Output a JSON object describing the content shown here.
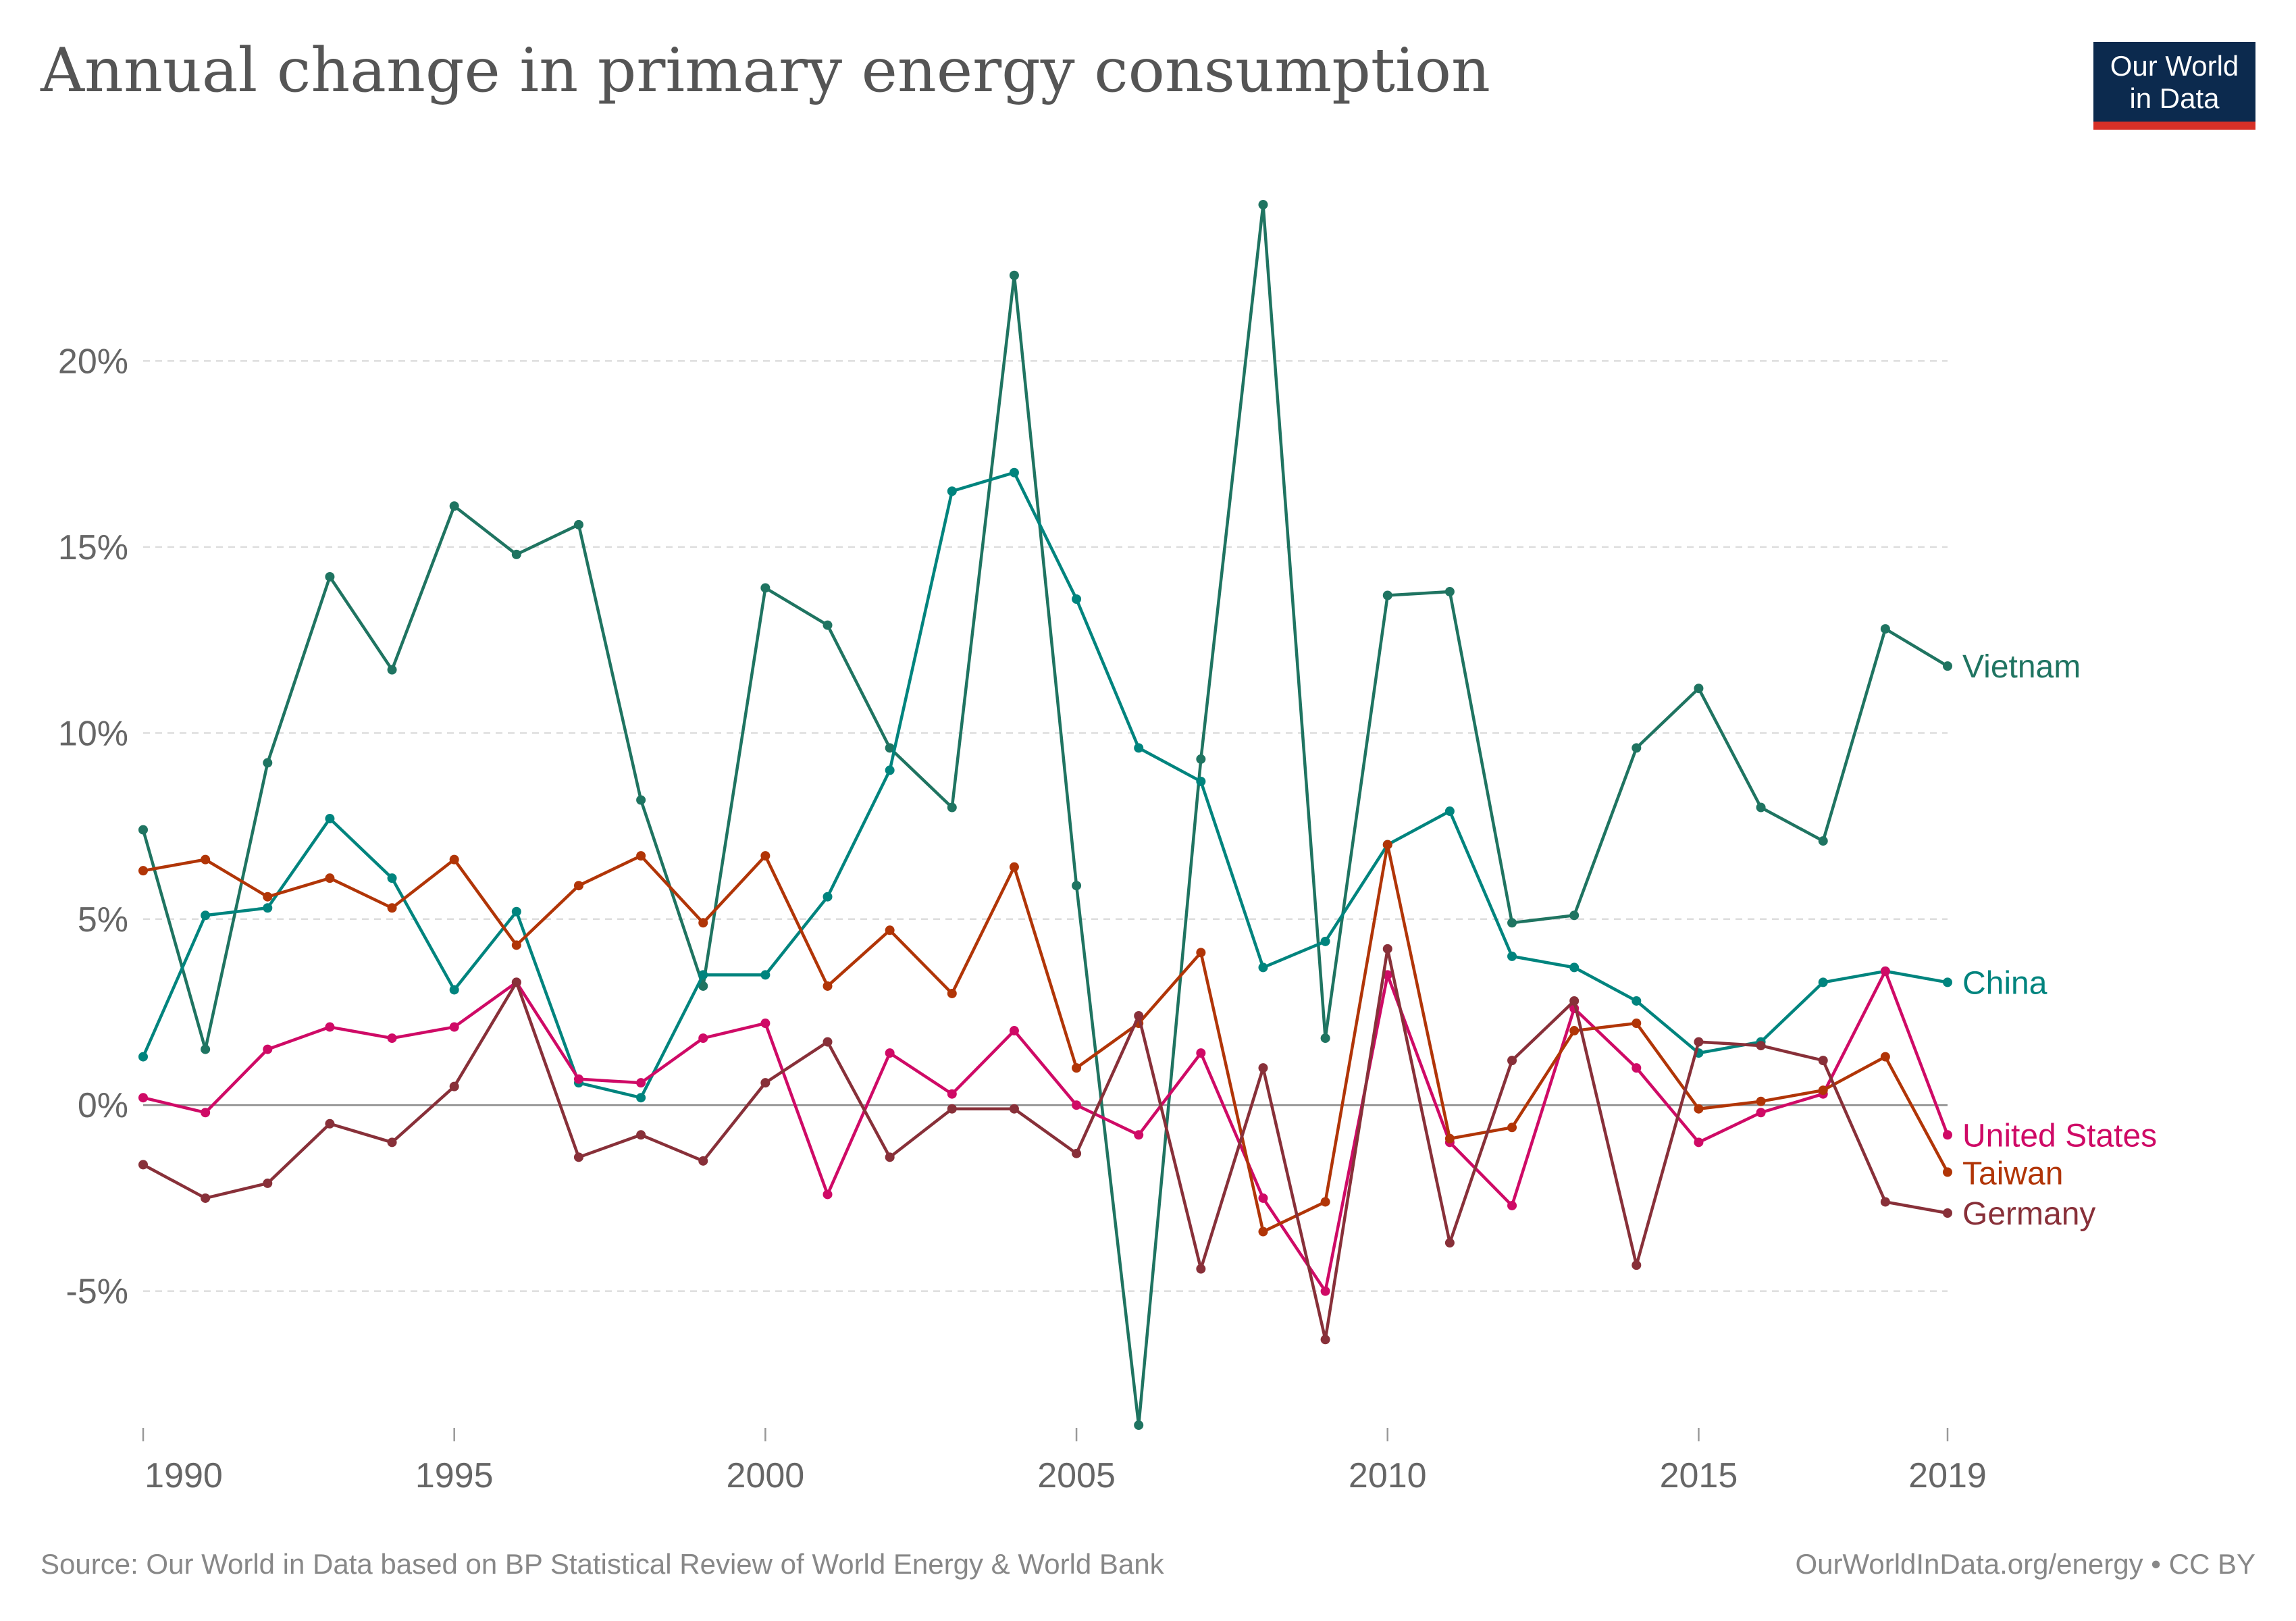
{
  "title": "Annual change in primary energy consumption",
  "logo": {
    "line1": "Our World",
    "line2": "in Data",
    "bg_color": "#0c2a4e",
    "stripe_color": "#d73027"
  },
  "footer": {
    "source": "Source: Our World in Data based on BP Statistical Review of World Energy & World Bank",
    "credit": "OurWorldInData.org/energy • CC BY"
  },
  "chart_data": {
    "type": "line",
    "title": "Annual change in primary energy consumption",
    "xlabel": "",
    "ylabel": "",
    "ylim": [
      -8.6,
      24.8
    ],
    "xlim": [
      1990,
      2019
    ],
    "y_ticks": [
      -5,
      0,
      5,
      10,
      15,
      20
    ],
    "y_tick_labels": [
      "-5%",
      "0%",
      "5%",
      "10%",
      "15%",
      "20%"
    ],
    "x_ticks": [
      1990,
      1995,
      2000,
      2005,
      2010,
      2015,
      2019
    ],
    "x_tick_labels": [
      "1990",
      "1995",
      "2000",
      "2005",
      "2010",
      "2015",
      "2019"
    ],
    "grid": "horizontal dashed",
    "legend": "inline labels at line ends (right)",
    "x": [
      1990,
      1991,
      1992,
      1993,
      1994,
      1995,
      1996,
      1997,
      1998,
      1999,
      2000,
      2001,
      2002,
      2003,
      2004,
      2005,
      2006,
      2007,
      2008,
      2009,
      2010,
      2011,
      2012,
      2013,
      2014,
      2015,
      2016,
      2017,
      2018,
      2019
    ],
    "series": [
      {
        "name": "Vietnam",
        "color": "#1f7461",
        "values": [
          7.4,
          1.5,
          9.2,
          14.2,
          11.7,
          16.1,
          14.8,
          15.6,
          8.2,
          3.2,
          13.9,
          12.9,
          9.6,
          8.0,
          22.3,
          5.9,
          -8.6,
          9.3,
          24.2,
          1.8,
          13.7,
          13.8,
          4.9,
          5.1,
          9.6,
          11.2,
          8.0,
          7.1,
          12.8,
          11.8
        ]
      },
      {
        "name": "China",
        "color": "#00847e",
        "values": [
          1.3,
          5.1,
          5.3,
          7.7,
          6.1,
          3.1,
          5.2,
          0.6,
          0.2,
          3.5,
          3.5,
          5.6,
          9.0,
          16.5,
          17.0,
          13.6,
          9.6,
          8.7,
          3.7,
          4.4,
          7.0,
          7.9,
          4.0,
          3.7,
          2.8,
          1.4,
          1.7,
          3.3,
          3.6,
          3.3
        ]
      },
      {
        "name": "United States",
        "color": "#cf0a66",
        "values": [
          0.2,
          -0.2,
          1.5,
          2.1,
          1.8,
          2.1,
          3.3,
          0.7,
          0.6,
          1.8,
          2.2,
          -2.4,
          1.4,
          0.3,
          2.0,
          0.0,
          -0.8,
          1.4,
          -2.5,
          -5.0,
          3.5,
          -1.0,
          -2.7,
          2.6,
          1.0,
          -1.0,
          -0.2,
          0.3,
          3.6,
          -0.8
        ]
      },
      {
        "name": "Taiwan",
        "color": "#b13507",
        "values": [
          6.3,
          6.6,
          5.6,
          6.1,
          5.3,
          6.6,
          4.3,
          5.9,
          6.7,
          4.9,
          6.7,
          3.2,
          4.7,
          3.0,
          6.4,
          1.0,
          2.2,
          4.1,
          -3.4,
          -2.6,
          7.0,
          -0.9,
          -0.6,
          2.0,
          2.2,
          -0.1,
          0.1,
          0.4,
          1.3,
          -1.8
        ]
      },
      {
        "name": "Germany",
        "color": "#883039",
        "values": [
          -1.6,
          -2.5,
          -2.1,
          -0.5,
          -1.0,
          0.5,
          3.3,
          -1.4,
          -0.8,
          -1.5,
          0.6,
          1.7,
          -1.4,
          -0.1,
          -0.1,
          -1.3,
          2.4,
          -4.4,
          1.0,
          -6.3,
          4.2,
          -3.7,
          1.2,
          2.8,
          -4.3,
          1.7,
          1.6,
          1.2,
          -2.6,
          -2.9
        ]
      }
    ]
  }
}
